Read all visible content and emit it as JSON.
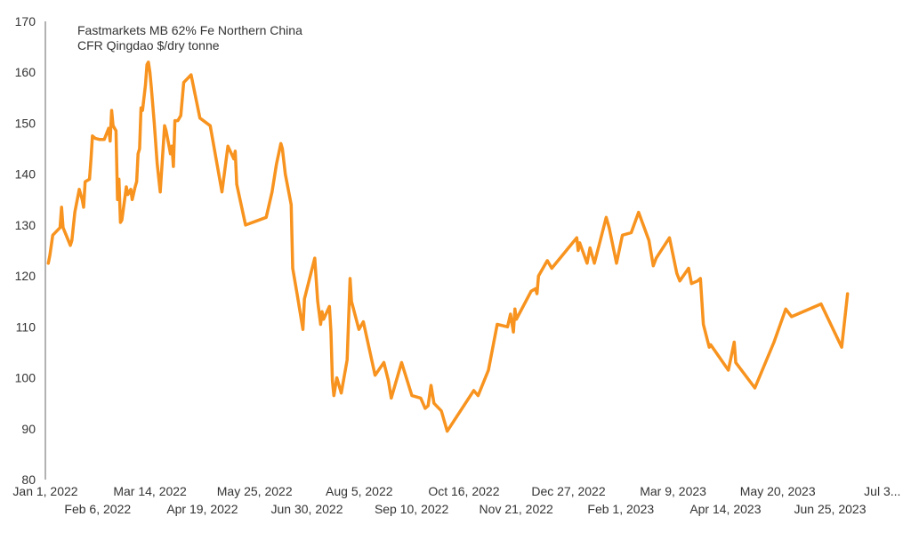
{
  "chart_data": {
    "type": "line",
    "title_lines": [
      "Fastmarkets MB 62% Fe Northern China",
      "CFR Qingdao $/dry tonne"
    ],
    "xlabel": "",
    "ylabel": "",
    "ylim": [
      80,
      170
    ],
    "yticks": [
      80,
      90,
      100,
      110,
      120,
      130,
      140,
      150,
      160,
      170
    ],
    "xlim": [
      "2022-01-01",
      "2023-07-31"
    ],
    "xtick_labels_row1": [
      "Jan 1, 2022",
      "Mar 14, 2022",
      "May 25, 2022",
      "Aug 5, 2022",
      "Oct 16, 2022",
      "Dec 27, 2022",
      "Mar 9, 2023",
      "May 20, 2023",
      "Jul 3..."
    ],
    "xtick_labels_row2": [
      "Feb 6, 2022",
      "Apr 19, 2022",
      "Jun 30, 2022",
      "Sep 10, 2022",
      "Nov 21, 2022",
      "Feb 1, 2023",
      "Apr 14, 2023",
      "Jun 25, 2023"
    ],
    "grid": false,
    "line_color": "#F7931E",
    "series": [
      {
        "points": [
          [
            "2022-01-03",
            122.5
          ],
          [
            "2022-01-04",
            124.0
          ],
          [
            "2022-01-06",
            128.0
          ],
          [
            "2022-01-11",
            129.5
          ],
          [
            "2022-01-12",
            133.5
          ],
          [
            "2022-01-13",
            129.5
          ],
          [
            "2022-01-18",
            126.0
          ],
          [
            "2022-01-19",
            127.0
          ],
          [
            "2022-01-21",
            132.5
          ],
          [
            "2022-01-24",
            137.0
          ],
          [
            "2022-01-26",
            135.0
          ],
          [
            "2022-01-27",
            133.5
          ],
          [
            "2022-01-28",
            138.5
          ],
          [
            "2022-01-31",
            139.0
          ],
          [
            "2022-02-01",
            143.0
          ],
          [
            "2022-02-02",
            147.5
          ],
          [
            "2022-02-04",
            147.0
          ],
          [
            "2022-02-07",
            146.8
          ],
          [
            "2022-02-10",
            146.8
          ],
          [
            "2022-02-13",
            149.0
          ],
          [
            "2022-02-14",
            146.5
          ],
          [
            "2022-02-15",
            152.5
          ],
          [
            "2022-02-16",
            149.5
          ],
          [
            "2022-02-18",
            148.5
          ],
          [
            "2022-02-19",
            135.0
          ],
          [
            "2022-02-20",
            139.0
          ],
          [
            "2022-02-21",
            130.5
          ],
          [
            "2022-02-22",
            131.0
          ],
          [
            "2022-02-25",
            137.5
          ],
          [
            "2022-02-26",
            136.0
          ],
          [
            "2022-02-28",
            137.0
          ],
          [
            "2022-03-01",
            135.0
          ],
          [
            "2022-03-03",
            137.5
          ],
          [
            "2022-03-04",
            138.5
          ],
          [
            "2022-03-05",
            144.0
          ],
          [
            "2022-03-06",
            145.0
          ],
          [
            "2022-03-07",
            153.0
          ],
          [
            "2022-03-08",
            152.5
          ],
          [
            "2022-03-10",
            157.5
          ],
          [
            "2022-03-11",
            161.5
          ],
          [
            "2022-03-12",
            162.0
          ],
          [
            "2022-03-13",
            160.0
          ],
          [
            "2022-03-14",
            157.0
          ],
          [
            "2022-03-16",
            150.0
          ],
          [
            "2022-03-18",
            142.0
          ],
          [
            "2022-03-20",
            136.5
          ],
          [
            "2022-03-23",
            149.5
          ],
          [
            "2022-03-24",
            148.5
          ],
          [
            "2022-03-26",
            145.5
          ],
          [
            "2022-03-27",
            144.0
          ],
          [
            "2022-03-28",
            145.5
          ],
          [
            "2022-03-29",
            141.5
          ],
          [
            "2022-03-30",
            150.5
          ],
          [
            "2022-04-01",
            150.5
          ],
          [
            "2022-04-03",
            151.5
          ],
          [
            "2022-04-05",
            158.0
          ],
          [
            "2022-04-10",
            159.5
          ],
          [
            "2022-04-16",
            151.0
          ],
          [
            "2022-04-23",
            149.5
          ],
          [
            "2022-05-01",
            136.5
          ],
          [
            "2022-05-05",
            145.5
          ],
          [
            "2022-05-09",
            143.0
          ],
          [
            "2022-05-10",
            144.5
          ],
          [
            "2022-05-11",
            138.0
          ],
          [
            "2022-05-17",
            130.0
          ],
          [
            "2022-05-31",
            131.5
          ],
          [
            "2022-06-04",
            136.5
          ],
          [
            "2022-06-07",
            142.0
          ],
          [
            "2022-06-10",
            146.0
          ],
          [
            "2022-06-11",
            145.0
          ],
          [
            "2022-06-13",
            140.0
          ],
          [
            "2022-06-17",
            134.0
          ],
          [
            "2022-06-18",
            121.5
          ],
          [
            "2022-06-21",
            116.5
          ],
          [
            "2022-06-25",
            109.5
          ],
          [
            "2022-06-26",
            115.5
          ],
          [
            "2022-07-03",
            123.5
          ],
          [
            "2022-07-05",
            115.0
          ],
          [
            "2022-07-07",
            110.5
          ],
          [
            "2022-07-08",
            113.0
          ],
          [
            "2022-07-09",
            111.5
          ],
          [
            "2022-07-13",
            114.0
          ],
          [
            "2022-07-14",
            109.0
          ],
          [
            "2022-07-15",
            99.5
          ],
          [
            "2022-07-16",
            96.5
          ],
          [
            "2022-07-18",
            100.0
          ],
          [
            "2022-07-21",
            97.0
          ],
          [
            "2022-07-25",
            103.5
          ],
          [
            "2022-07-27",
            119.5
          ],
          [
            "2022-07-28",
            115.0
          ],
          [
            "2022-08-02",
            109.5
          ],
          [
            "2022-08-05",
            111.0
          ],
          [
            "2022-08-13",
            100.5
          ],
          [
            "2022-08-19",
            103.0
          ],
          [
            "2022-08-22",
            99.5
          ],
          [
            "2022-08-24",
            96.0
          ],
          [
            "2022-08-31",
            103.0
          ],
          [
            "2022-09-07",
            96.5
          ],
          [
            "2022-09-13",
            96.0
          ],
          [
            "2022-09-16",
            94.0
          ],
          [
            "2022-09-18",
            94.5
          ],
          [
            "2022-09-20",
            98.5
          ],
          [
            "2022-09-22",
            95.0
          ],
          [
            "2022-09-27",
            93.5
          ],
          [
            "2022-10-01",
            89.5
          ],
          [
            "2022-10-19",
            97.5
          ],
          [
            "2022-10-22",
            96.5
          ],
          [
            "2022-10-29",
            101.5
          ],
          [
            "2022-11-04",
            110.5
          ],
          [
            "2022-11-11",
            110.0
          ],
          [
            "2022-11-13",
            112.5
          ],
          [
            "2022-11-15",
            109.0
          ],
          [
            "2022-11-16",
            113.5
          ],
          [
            "2022-11-17",
            111.5
          ],
          [
            "2022-11-27",
            117.0
          ],
          [
            "2022-11-30",
            117.5
          ],
          [
            "2022-12-01",
            116.5
          ],
          [
            "2022-12-02",
            120.0
          ],
          [
            "2022-12-08",
            123.0
          ],
          [
            "2022-12-11",
            121.5
          ],
          [
            "2022-12-28",
            127.5
          ],
          [
            "2022-12-29",
            125.0
          ],
          [
            "2022-12-30",
            126.5
          ],
          [
            "2023-01-04",
            122.5
          ],
          [
            "2023-01-06",
            125.5
          ],
          [
            "2023-01-09",
            122.5
          ],
          [
            "2023-01-13",
            127.0
          ],
          [
            "2023-01-17",
            131.5
          ],
          [
            "2023-01-19",
            129.5
          ],
          [
            "2023-01-24",
            122.5
          ],
          [
            "2023-01-28",
            128.0
          ],
          [
            "2023-02-03",
            128.5
          ],
          [
            "2023-02-08",
            132.5
          ],
          [
            "2023-02-15",
            127.0
          ],
          [
            "2023-02-18",
            122.0
          ],
          [
            "2023-02-20",
            123.5
          ],
          [
            "2023-03-01",
            127.5
          ],
          [
            "2023-03-06",
            120.5
          ],
          [
            "2023-03-08",
            119.0
          ],
          [
            "2023-03-14",
            121.5
          ],
          [
            "2023-03-16",
            118.5
          ],
          [
            "2023-03-20",
            119.0
          ],
          [
            "2023-03-22",
            119.5
          ],
          [
            "2023-03-24",
            110.5
          ],
          [
            "2023-03-28",
            106.0
          ],
          [
            "2023-03-29",
            106.5
          ],
          [
            "2023-04-10",
            101.5
          ],
          [
            "2023-04-14",
            107.0
          ],
          [
            "2023-04-15",
            103.0
          ],
          [
            "2023-04-28",
            98.0
          ],
          [
            "2023-05-11",
            107.0
          ],
          [
            "2023-05-19",
            113.5
          ],
          [
            "2023-05-23",
            112.0
          ],
          [
            "2023-06-12",
            114.5
          ],
          [
            "2023-06-26",
            106.0
          ],
          [
            "2023-06-30",
            116.5
          ]
        ]
      }
    ]
  }
}
